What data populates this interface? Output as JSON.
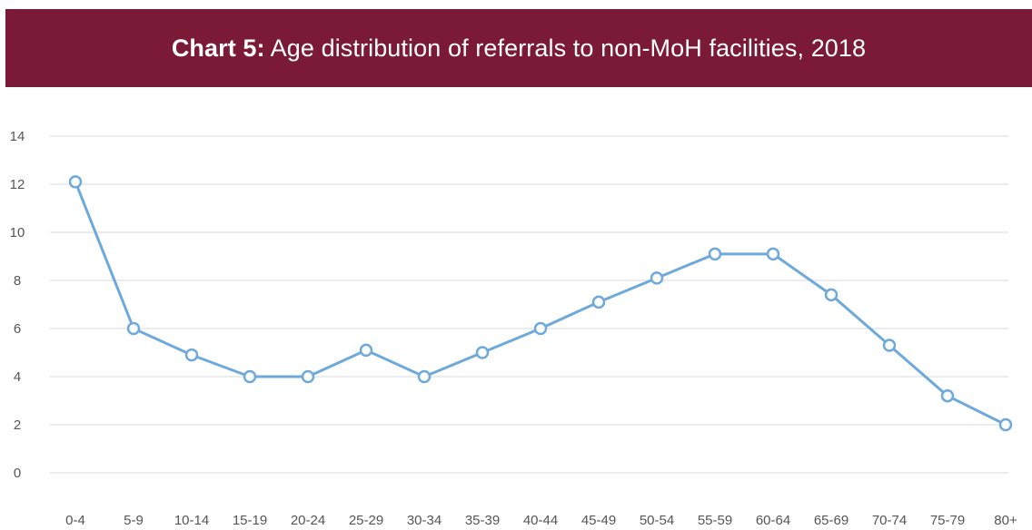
{
  "title_prefix": "Chart 5:",
  "title": "Age distribution of referrals to non-MoH facilities, 2018",
  "colors": {
    "banner": "#7b1a36",
    "line": "#6fa9dc",
    "grid": "#d9d9d9",
    "marker_fill": "#ffffff"
  },
  "chart_data": {
    "type": "line",
    "categories": [
      "0-4",
      "5-9",
      "10-14",
      "15-19",
      "20-24",
      "25-29",
      "30-34",
      "35-39",
      "40-44",
      "45-49",
      "50-54",
      "55-59",
      "60-64",
      "65-69",
      "70-74",
      "75-79",
      "80+"
    ],
    "series": [
      {
        "values": [
          12.1,
          6.0,
          4.9,
          4.0,
          4.0,
          5.1,
          4.0,
          5.0,
          6.0,
          7.1,
          8.1,
          9.1,
          9.1,
          7.4,
          5.3,
          3.2,
          2.0
        ]
      }
    ],
    "yticks": [
      0,
      2,
      4,
      6,
      8,
      10,
      12,
      14
    ],
    "ylim": [
      0,
      14
    ],
    "xlabel": "",
    "ylabel": "",
    "grid": true,
    "legend": "none"
  }
}
